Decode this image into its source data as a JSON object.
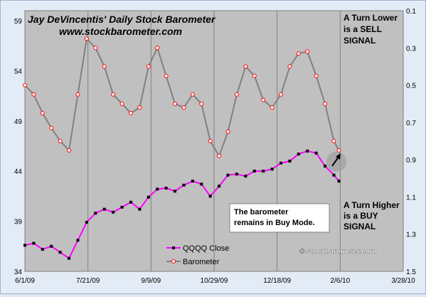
{
  "chart_data": {
    "type": "line",
    "title": "Jay DeVincentis' Daily Stock Barometer",
    "subtitle": "www.stockbarometer.com",
    "x_tick_labels": [
      "6/1/09",
      "7/21/09",
      "9/9/09",
      "10/29/09",
      "12/18/09",
      "2/6/10",
      "3/28/10"
    ],
    "x_range": [
      "2009-06-01",
      "2010-03-28"
    ],
    "y_left": {
      "ticks": [
        34,
        39,
        44,
        49,
        54,
        59
      ],
      "range": [
        34,
        60
      ]
    },
    "y_right": {
      "ticks": [
        "0.1",
        "0.3",
        "0.5",
        "0.7",
        "0.9",
        "1.1",
        "1.3",
        "1.5"
      ],
      "range": [
        0.1,
        1.5
      ],
      "inverted": true
    },
    "grid": "vertical",
    "legend_position": "bottom-center",
    "series": [
      {
        "name": "QQQQ Close",
        "axis": "left",
        "color": "#ff00ff",
        "marker_color": "#000000",
        "x": [
          "2009-06-01",
          "2009-06-08",
          "2009-06-15",
          "2009-06-22",
          "2009-06-29",
          "2009-07-06",
          "2009-07-13",
          "2009-07-20",
          "2009-07-27",
          "2009-08-03",
          "2009-08-10",
          "2009-08-17",
          "2009-08-24",
          "2009-08-31",
          "2009-09-07",
          "2009-09-14",
          "2009-09-21",
          "2009-09-28",
          "2009-10-05",
          "2009-10-12",
          "2009-10-19",
          "2009-10-26",
          "2009-11-02",
          "2009-11-09",
          "2009-11-16",
          "2009-11-23",
          "2009-11-30",
          "2009-12-07",
          "2009-12-14",
          "2009-12-21",
          "2009-12-28",
          "2010-01-04",
          "2010-01-11",
          "2010-01-18",
          "2010-01-25",
          "2010-02-01",
          "2010-02-05"
        ],
        "values": [
          36.6,
          36.8,
          36.2,
          36.5,
          35.9,
          35.3,
          37.1,
          38.9,
          39.8,
          40.2,
          39.9,
          40.4,
          40.9,
          40.2,
          41.4,
          42.2,
          42.3,
          42.0,
          42.6,
          43.0,
          42.7,
          41.5,
          42.5,
          43.6,
          43.7,
          43.5,
          44.0,
          44.0,
          44.2,
          44.8,
          45.0,
          45.7,
          46.0,
          45.8,
          44.5,
          43.6,
          43.0
        ]
      },
      {
        "name": "Barometer",
        "axis": "right",
        "color": "#808080",
        "marker_color": "#ff0000",
        "x": [
          "2009-06-01",
          "2009-06-08",
          "2009-06-15",
          "2009-06-22",
          "2009-06-29",
          "2009-07-06",
          "2009-07-13",
          "2009-07-20",
          "2009-07-27",
          "2009-08-03",
          "2009-08-10",
          "2009-08-17",
          "2009-08-24",
          "2009-08-31",
          "2009-09-07",
          "2009-09-14",
          "2009-09-21",
          "2009-09-28",
          "2009-10-05",
          "2009-10-12",
          "2009-10-19",
          "2009-10-26",
          "2009-11-02",
          "2009-11-09",
          "2009-11-16",
          "2009-11-23",
          "2009-11-30",
          "2009-12-07",
          "2009-12-14",
          "2009-12-21",
          "2009-12-28",
          "2010-01-04",
          "2010-01-11",
          "2010-01-18",
          "2010-01-25",
          "2010-02-01",
          "2010-02-05"
        ],
        "values": [
          0.5,
          0.55,
          0.65,
          0.73,
          0.8,
          0.85,
          0.55,
          0.25,
          0.3,
          0.4,
          0.55,
          0.6,
          0.65,
          0.62,
          0.4,
          0.3,
          0.45,
          0.6,
          0.62,
          0.55,
          0.6,
          0.8,
          0.88,
          0.75,
          0.55,
          0.4,
          0.45,
          0.58,
          0.62,
          0.55,
          0.4,
          0.33,
          0.32,
          0.45,
          0.6,
          0.8,
          0.85
        ]
      }
    ],
    "legend": [
      "QQQQ Close",
      "Barometer"
    ],
    "annotations": {
      "sell": "A Turn Lower is a SELL SIGNAL",
      "buy": "A Turn Higher is a BUY SIGNAL",
      "box": "The barometer remains in Buy Mode.",
      "copyright": "© stockbarometer.com"
    }
  }
}
